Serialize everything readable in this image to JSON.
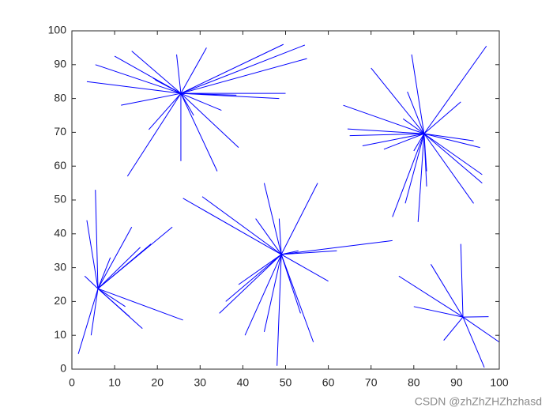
{
  "chart_data": {
    "type": "star-segments",
    "color": "#0000ff",
    "xlim": [
      0,
      100
    ],
    "ylim": [
      0,
      100
    ],
    "xticks": [
      0,
      10,
      20,
      30,
      40,
      50,
      60,
      70,
      80,
      90,
      100
    ],
    "yticks": [
      0,
      10,
      20,
      30,
      40,
      50,
      60,
      70,
      80,
      90,
      100
    ],
    "watermark": "CSDN @zhZhZHZhzhasd",
    "series": [
      {
        "center": [
          25.5,
          81.5
        ],
        "x": [
          49.5,
          54.5,
          55,
          14,
          5.5,
          3.5,
          10,
          11.5,
          19.5,
          31.5,
          24.5,
          13,
          18,
          25.5,
          34,
          39,
          35,
          28.5,
          50,
          48.5,
          38.5,
          19
        ],
        "y": [
          96,
          95.8,
          91.8,
          94,
          90,
          85,
          92.5,
          78,
          85.5,
          95,
          93,
          57,
          70.8,
          61.5,
          58.5,
          65.5,
          76.5,
          75,
          81.5,
          80,
          81,
          86
        ]
      },
      {
        "center": [
          82.4,
          69.6
        ],
        "x": [
          97,
          79.5,
          70,
          63.5,
          64.5,
          65,
          68,
          73,
          91,
          95.5,
          94,
          96,
          96,
          94,
          75,
          78,
          81,
          83,
          83,
          78.5,
          77.5,
          80
        ],
        "y": [
          95.5,
          93,
          89,
          78,
          71,
          69,
          66,
          65,
          79,
          65.5,
          67.5,
          57.5,
          55,
          49,
          45,
          49,
          43.5,
          54,
          58.5,
          82,
          74,
          64.5
        ]
      },
      {
        "center": [
          6.1,
          23.8
        ],
        "x": [
          5.5,
          3.5,
          3,
          1.5,
          4.5,
          14,
          23.5,
          18.5,
          16,
          26,
          16.5,
          13.5,
          12.5,
          9
        ],
        "y": [
          53,
          44,
          27.5,
          4.5,
          10,
          42,
          42,
          37,
          36,
          14.5,
          12,
          15.5,
          18.5,
          33
        ]
      },
      {
        "center": [
          49,
          33.9
        ],
        "x": [
          26,
          30.5,
          45,
          57.5,
          48.5,
          43,
          75,
          62,
          53,
          60,
          56.5,
          53.5,
          48,
          45,
          40.5,
          34.5,
          36,
          39
        ],
        "y": [
          50.5,
          51,
          55,
          55,
          44.5,
          44.5,
          38,
          35,
          35,
          26,
          8,
          16.5,
          1,
          11,
          10,
          16.5,
          20,
          25
        ]
      },
      {
        "center": [
          91.5,
          15.4
        ],
        "x": [
          91,
          84,
          76.5,
          80,
          97.5,
          100,
          96.5,
          87
        ],
        "y": [
          37,
          31,
          27.5,
          18.5,
          15.5,
          8,
          0.5,
          8.5
        ]
      }
    ]
  }
}
